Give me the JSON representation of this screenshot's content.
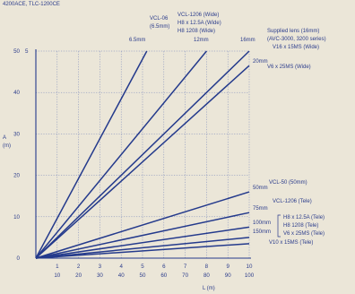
{
  "header": {
    "title": "4200ACE, TLC-1200CE"
  },
  "chart_data": {
    "type": "line",
    "title": "4200ACE, TLC-1200CE",
    "xlabel": "L (m)",
    "ylabel_line1": "A",
    "ylabel_line2": "(m)",
    "x_ticks_top": [
      "1",
      "2",
      "3",
      "4",
      "5",
      "6",
      "7",
      "8",
      "9",
      "10"
    ],
    "x_ticks_bottom": [
      "10",
      "20",
      "30",
      "40",
      "50",
      "60",
      "70",
      "80",
      "90",
      "100"
    ],
    "y_ticks": [
      "0",
      "10",
      "20",
      "30",
      "40",
      "50"
    ],
    "y_tick_extra": "5",
    "xlim": [
      0,
      10
    ],
    "ylim": [
      0,
      50
    ],
    "grid": true,
    "series": [
      {
        "name": "VCL-06 (6.5mm)",
        "end_label": "6.5mm",
        "x": [
          0,
          5.2
        ],
        "y": [
          0,
          50
        ]
      },
      {
        "name": "VCL-1206 (Wide) / H8 x 12.5A (Wide) / H8 1208 (Wide)",
        "end_label": "12mm",
        "x": [
          0,
          8.0
        ],
        "y": [
          0,
          50
        ]
      },
      {
        "name": "Supplied lens (16mm) (AVC-3000, 3200 series) / V16 x 15MS (Wide)",
        "end_label": "16mm",
        "x": [
          0,
          10
        ],
        "y": [
          0,
          50
        ]
      },
      {
        "name": "V6 x 25MS (Wide)",
        "end_label": "20mm",
        "x": [
          0,
          10
        ],
        "y": [
          0,
          46.5
        ]
      },
      {
        "name": "VCL-50 (50mm)",
        "end_label": "50mm",
        "x": [
          0,
          10
        ],
        "y": [
          0,
          16
        ]
      },
      {
        "name": "VCL-1206 (Tele)",
        "end_label": "75mm",
        "x": [
          0,
          10
        ],
        "y": [
          0,
          11
        ]
      },
      {
        "name": "H8 x 12.5A (Tele) / H8 1208 (Tele)",
        "end_label": "100mm",
        "x": [
          0,
          10
        ],
        "y": [
          0,
          7.5
        ]
      },
      {
        "name": "V6 x 25MS (Tele)",
        "end_label": "150mm",
        "x": [
          0,
          10
        ],
        "y": [
          0,
          5
        ]
      },
      {
        "name": "V10 x 15MS (Tele)",
        "end_label": "",
        "x": [
          0,
          10
        ],
        "y": [
          0,
          3.5
        ]
      }
    ],
    "annotations": {
      "vcl06": [
        "VCL-06",
        "(6.5mm)"
      ],
      "vcl1206wide": [
        "VCL-1206 (Wide)",
        "H8 x 12.5A (Wide)",
        "H8 1208 (Wide)"
      ],
      "supplied": [
        "Supplied lens (16mm)",
        "(AVC-3000, 3200 series)",
        "V16 x 15MS (Wide)"
      ],
      "v6wide": [
        "V6 x 25MS (Wide)"
      ],
      "vcl50": [
        "VCL-50 (50mm)"
      ],
      "vcl1206tele": [
        "VCL-1206 (Tele)"
      ],
      "h8tele": [
        "H8 x 12.5A (Tele)",
        "H8 1208 (Tele)",
        "V6 x 25MS (Tele)"
      ],
      "v10tele": [
        "V10 x 15MS (Tele)"
      ]
    }
  }
}
